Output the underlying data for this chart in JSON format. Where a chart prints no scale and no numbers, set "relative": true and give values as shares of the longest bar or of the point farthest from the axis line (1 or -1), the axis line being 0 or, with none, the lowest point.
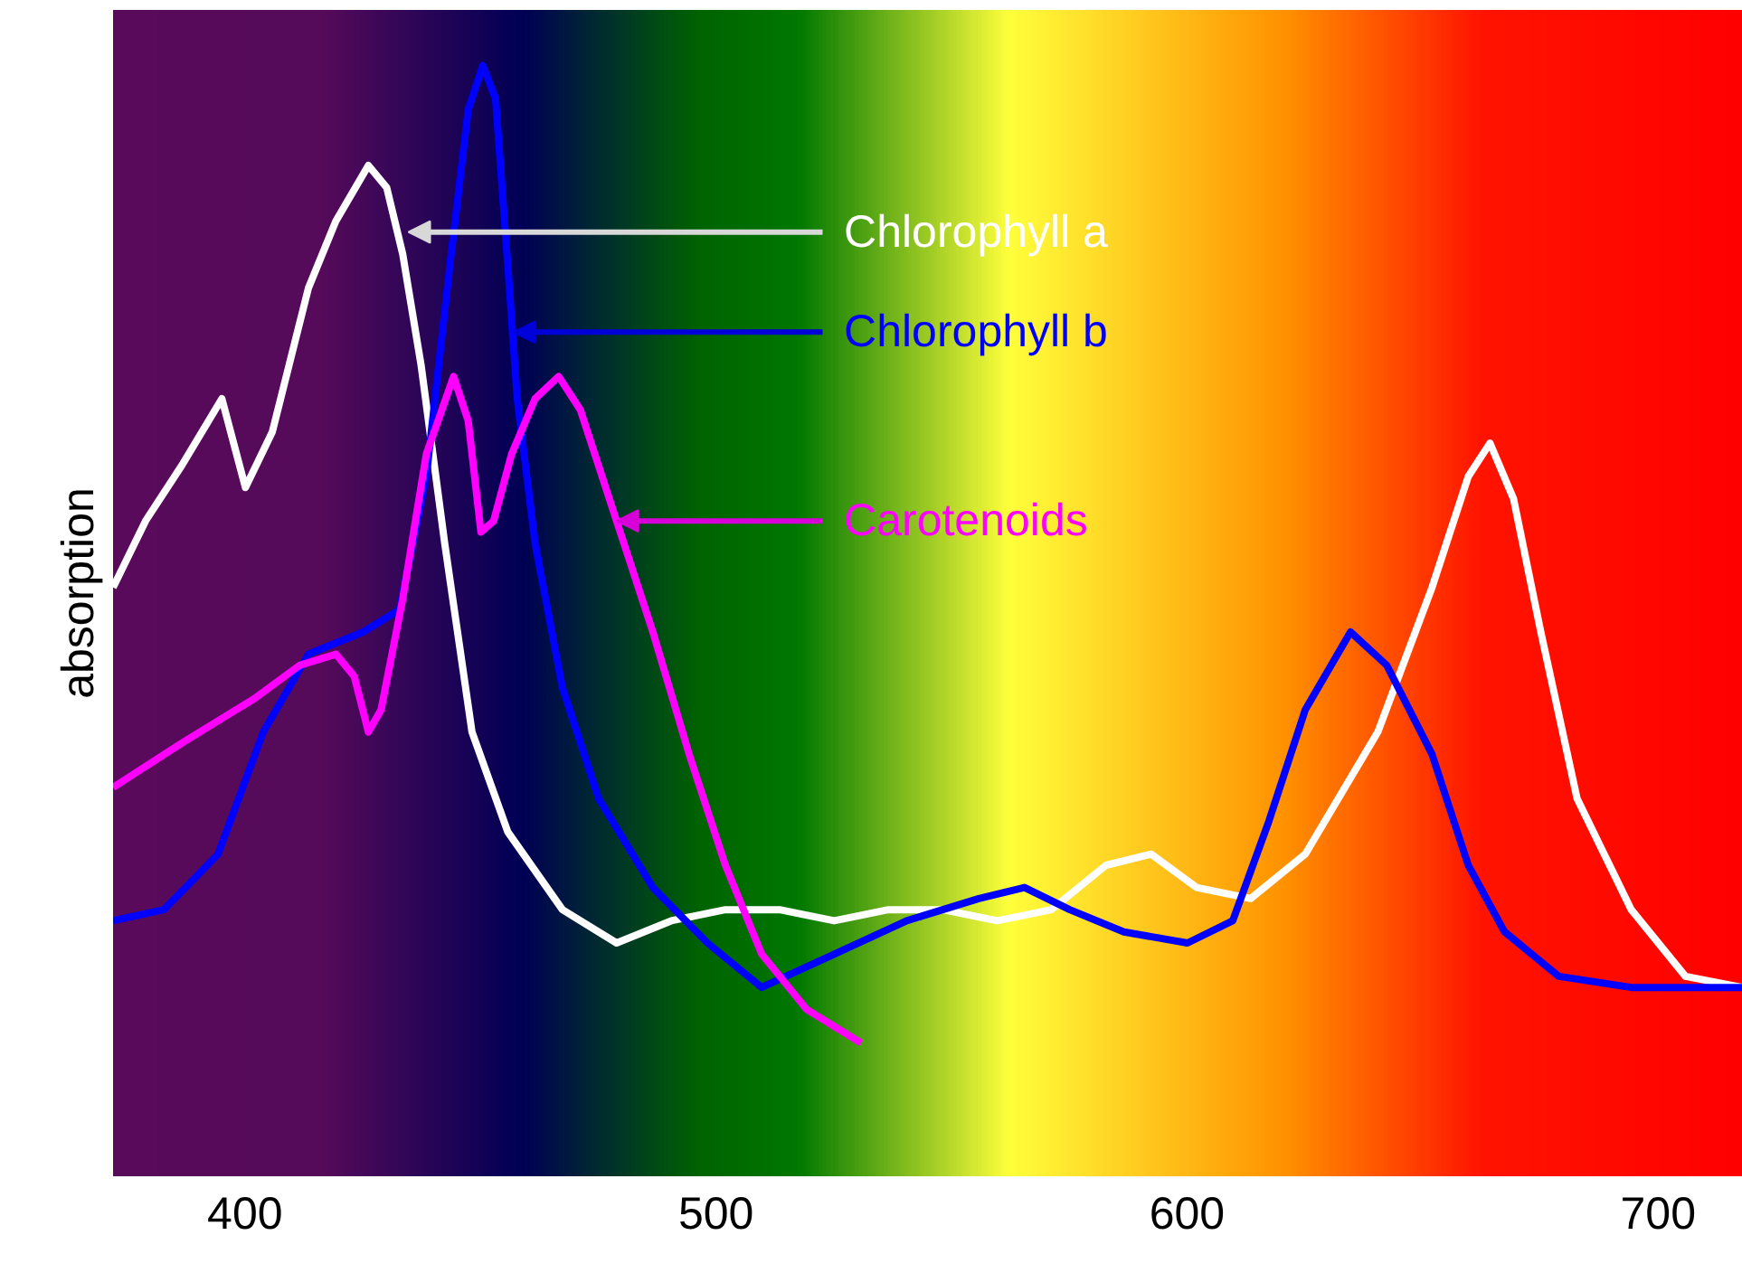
{
  "chart_data": {
    "type": "line",
    "relative": true,
    "ylabel": "absorption",
    "xlim": [
      372,
      718
    ],
    "xticks": [
      400,
      500,
      600,
      700
    ],
    "grid": false,
    "marker": "none",
    "line_style": "solid",
    "series": [
      {
        "color": "#ffffff",
        "x": [
          372,
          378.9,
          386.6,
          395.1,
          400.1,
          405.8,
          413.5,
          419.3,
          426.2,
          430.1,
          433.5,
          437.4,
          442.4,
          448.2,
          455.8,
          467.4,
          478.9,
          490.5,
          502,
          513.5,
          525.1,
          536.6,
          548.2,
          559.7,
          571.2,
          582.8,
          592.4,
          602,
          613.5,
          625.1,
          640.5,
          652,
          659.7,
          664.3,
          669.3,
          675.1,
          682.8,
          694.3,
          705.8,
          718
        ],
        "values": [
          0.53,
          0.59,
          0.64,
          0.7,
          0.62,
          0.67,
          0.8,
          0.86,
          0.91,
          0.89,
          0.83,
          0.73,
          0.57,
          0.4,
          0.31,
          0.24,
          0.21,
          0.23,
          0.24,
          0.24,
          0.23,
          0.24,
          0.24,
          0.23,
          0.24,
          0.28,
          0.29,
          0.26,
          0.25,
          0.29,
          0.4,
          0.53,
          0.63,
          0.66,
          0.61,
          0.49,
          0.34,
          0.24,
          0.18,
          0.17
        ]
      },
      {
        "color": "#0000ff",
        "x": [
          372,
          382.8,
          394.3,
          403.9,
          413.5,
          425.1,
          432.8,
          438.5,
          443.5,
          447.4,
          450.5,
          453.2,
          455.8,
          457.8,
          461.6,
          467.4,
          475.1,
          486.6,
          498.2,
          509.7,
          525.1,
          540.5,
          555.8,
          565.5,
          575.1,
          586.6,
          600.1,
          609.7,
          617.4,
          625.1,
          634.7,
          642.4,
          652,
          659.7,
          667.4,
          678.9,
          694.3,
          718
        ],
        "values": [
          0.23,
          0.24,
          0.29,
          0.4,
          0.47,
          0.49,
          0.51,
          0.63,
          0.82,
          0.96,
          1,
          0.97,
          0.82,
          0.7,
          0.57,
          0.44,
          0.34,
          0.26,
          0.21,
          0.17,
          0.2,
          0.23,
          0.25,
          0.26,
          0.24,
          0.22,
          0.21,
          0.23,
          0.32,
          0.42,
          0.49,
          0.46,
          0.38,
          0.28,
          0.22,
          0.18,
          0.17,
          0.17
        ]
      },
      {
        "color": "#ff00ff",
        "x": [
          372,
          386.6,
          402,
          411.6,
          419.3,
          423.2,
          426.2,
          428.9,
          433.5,
          438.5,
          444.3,
          447.4,
          450.1,
          452.8,
          456.6,
          461.6,
          466.6,
          471.2,
          478.9,
          486.6,
          494.3,
          502,
          509.7,
          519.3,
          530.8
        ],
        "values": [
          0.35,
          0.39,
          0.43,
          0.46,
          0.47,
          0.45,
          0.4,
          0.42,
          0.52,
          0.65,
          0.72,
          0.68,
          0.58,
          0.59,
          0.65,
          0.7,
          0.72,
          0.69,
          0.59,
          0.49,
          0.38,
          0.28,
          0.2,
          0.15,
          0.12
        ]
      }
    ],
    "annotations": [
      {
        "text": "Chlorophyll a",
        "x": 434.7,
        "y": 0.85
      },
      {
        "text": "Chlorophyll b",
        "x": 457,
        "y": 0.76
      },
      {
        "text": "Carotenoids",
        "x": 478.9,
        "y": 0.59
      }
    ]
  }
}
